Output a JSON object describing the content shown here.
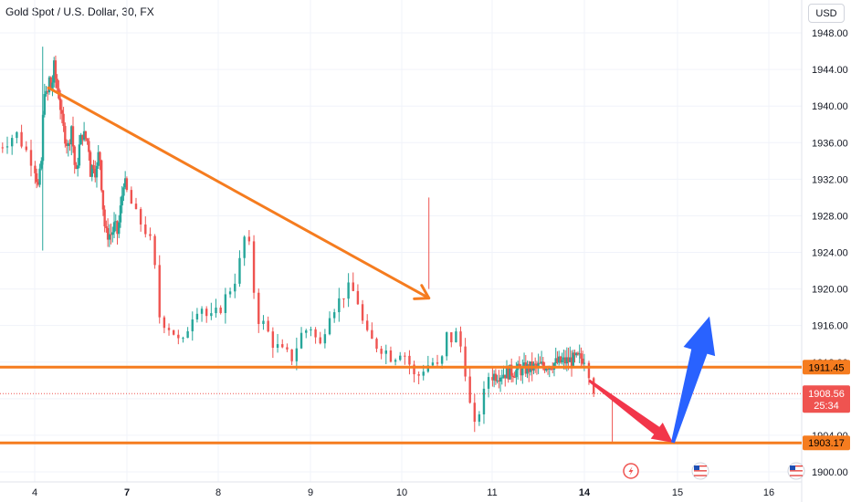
{
  "header": {
    "title": "Gold Spot / U.S. Dollar, 30, FX",
    "currency": "USD"
  },
  "colors": {
    "up": "#26a69a",
    "down": "#ef5350",
    "drawing": "#f57c1f",
    "arrow_down": "#f2364a",
    "arrow_up": "#2962ff",
    "price_line": "#ef5350",
    "grid": "#f0f3fa"
  },
  "chart_data": {
    "type": "candlestick",
    "symbol": "Gold Spot / U.S. Dollar",
    "timeframe": "30",
    "exchange": "FX",
    "ylim": [
      1899.5,
      1950.0
    ],
    "y_ticks": [
      1900,
      1904,
      1908,
      1912,
      1916,
      1920,
      1924,
      1928,
      1932,
      1936,
      1940,
      1944,
      1948
    ],
    "x_ticks": [
      {
        "label": "4",
        "day": 4,
        "bold": false
      },
      {
        "label": "7",
        "day": 7,
        "bold": true
      },
      {
        "label": "8",
        "day": 8,
        "bold": false
      },
      {
        "label": "9",
        "day": 9,
        "bold": false
      },
      {
        "label": "10",
        "day": 10,
        "bold": false
      },
      {
        "label": "11",
        "day": 11,
        "bold": false
      },
      {
        "label": "14",
        "day": 14,
        "bold": true
      },
      {
        "label": "15",
        "day": 15,
        "bold": false
      },
      {
        "label": "16",
        "day": 16,
        "bold": false
      }
    ],
    "grid": true,
    "current_price": {
      "value": 1908.56,
      "label": "1908.56",
      "countdown": "25:34"
    },
    "levels": [
      {
        "value": 1911.45,
        "label": "1911.45"
      },
      {
        "value": 1903.17,
        "label": "1903.17"
      }
    ],
    "price_path": [
      [
        3.6,
        1935.5
      ],
      [
        3.8,
        1937.0
      ],
      [
        4.0,
        1933.5
      ],
      [
        4.12,
        1931.0
      ],
      [
        4.22,
        1934.0
      ],
      [
        4.26,
        1938.0
      ],
      [
        4.32,
        1942.0
      ],
      [
        4.4,
        1940.5
      ],
      [
        4.47,
        1943.0
      ],
      [
        4.55,
        1941.5
      ],
      [
        4.62,
        1944.5
      ],
      [
        4.7,
        1942.5
      ],
      [
        4.8,
        1941.0
      ],
      [
        4.9,
        1938.0
      ],
      [
        5.0,
        1936.5
      ],
      [
        5.1,
        1935.5
      ],
      [
        5.2,
        1938.0
      ],
      [
        5.28,
        1934.0
      ],
      [
        5.35,
        1932.5
      ],
      [
        5.45,
        1935.5
      ],
      [
        5.55,
        1937.0
      ],
      [
        5.65,
        1936.5
      ],
      [
        5.75,
        1936.0
      ],
      [
        5.82,
        1932.5
      ],
      [
        5.9,
        1934.0
      ],
      [
        6.0,
        1932.5
      ],
      [
        6.1,
        1935.5
      ],
      [
        6.2,
        1930.0
      ],
      [
        6.3,
        1926.0
      ],
      [
        6.4,
        1926.0
      ],
      [
        6.5,
        1926.0
      ],
      [
        6.6,
        1927.0
      ],
      [
        6.7,
        1926.0
      ],
      [
        6.8,
        1929.0
      ],
      [
        6.9,
        1932.0
      ],
      [
        7.0,
        1930.5
      ],
      [
        7.1,
        1928.0
      ],
      [
        7.2,
        1926.5
      ],
      [
        7.3,
        1924.0
      ],
      [
        7.32,
        1917.5
      ],
      [
        7.4,
        1916.5
      ],
      [
        7.5,
        1915.5
      ],
      [
        7.6,
        1913.5
      ],
      [
        7.7,
        1917.0
      ],
      [
        7.8,
        1918.5
      ],
      [
        7.9,
        1916.5
      ],
      [
        8.0,
        1917.5
      ],
      [
        8.1,
        1919.5
      ],
      [
        8.2,
        1921.5
      ],
      [
        8.28,
        1925.0
      ],
      [
        8.3,
        1928.0
      ],
      [
        8.35,
        1923.0
      ],
      [
        8.42,
        1917.0
      ],
      [
        8.5,
        1916.0
      ],
      [
        8.6,
        1914.0
      ],
      [
        8.7,
        1913.0
      ],
      [
        8.8,
        1912.5
      ],
      [
        8.9,
        1915.0
      ],
      [
        9.0,
        1916.0
      ],
      [
        9.1,
        1913.5
      ],
      [
        9.2,
        1917.5
      ],
      [
        9.3,
        1918.5
      ],
      [
        9.4,
        1920.0
      ],
      [
        9.5,
        1919.5
      ],
      [
        9.6,
        1915.0
      ],
      [
        9.7,
        1914.0
      ],
      [
        9.8,
        1913.5
      ],
      [
        9.9,
        1912.5
      ],
      [
        10.0,
        1913.5
      ],
      [
        10.1,
        1911.5
      ],
      [
        10.15,
        1910.0
      ],
      [
        10.25,
        1911.5
      ],
      [
        10.35,
        1912.0
      ],
      [
        10.42,
        1911.0
      ],
      [
        10.5,
        1915.0
      ],
      [
        10.55,
        1914.5
      ],
      [
        10.6,
        1915.0
      ],
      [
        10.68,
        1913.0
      ],
      [
        10.75,
        1907.5
      ],
      [
        10.8,
        1904.5
      ],
      [
        10.85,
        1906.5
      ],
      [
        10.9,
        1908.0
      ],
      [
        10.95,
        1910.5
      ],
      [
        11.0,
        1912.5
      ],
      [
        11.05,
        1911.0
      ],
      [
        11.1,
        1908.56
      ]
    ],
    "drawings": [
      {
        "type": "trend_line_arrow",
        "from": [
          4.45,
          1942.0
        ],
        "to": [
          10.3,
          1919.0
        ]
      },
      {
        "type": "arrow_down",
        "from": [
          11.05,
          1910.0
        ],
        "to": [
          11.95,
          1903.2
        ]
      },
      {
        "type": "arrow_up",
        "from": [
          11.95,
          1903.2
        ],
        "to": [
          12.35,
          1917.0
        ]
      }
    ],
    "event_markers": [
      {
        "name": "dividend-flash-icon",
        "day": 14.5
      },
      {
        "name": "us-flag-icon",
        "day": 15.25
      },
      {
        "name": "us-flag-icon",
        "day": 16.3
      }
    ]
  }
}
